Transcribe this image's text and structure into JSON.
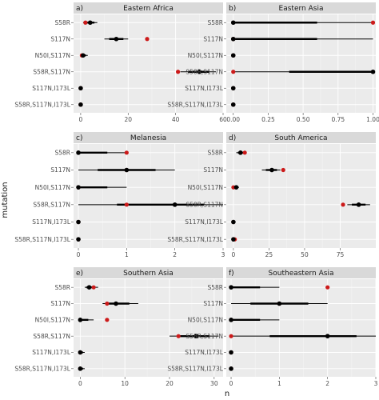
{
  "chart_data": {
    "type": "scatter",
    "xlabel": "n",
    "ylabel": "mutation",
    "mutations": [
      "S58R",
      "S117N",
      "N50I,S117N",
      "S58R,S117N",
      "S117N,I173L",
      "S58R,S117N,I173L"
    ],
    "legend": null,
    "colors": {
      "estimate": "#000000",
      "observed": "#cc1a1a",
      "panel_bg": "#ebebeb",
      "strip": "#d9d9d9"
    },
    "panels": [
      {
        "letter": "a)",
        "title": "Eastern Africa",
        "xlim": [
          -3,
          60
        ],
        "xticks": [
          0,
          20,
          40,
          60
        ],
        "points": [
          {
            "mutation": "S58R",
            "estimate": 4,
            "lower": 1,
            "upper": 7,
            "observed": 2
          },
          {
            "mutation": "S117N",
            "estimate": 15,
            "lower": 10,
            "upper": 20,
            "observed": 28
          },
          {
            "mutation": "N50I,S117N",
            "estimate": 1,
            "lower": 0,
            "upper": 3,
            "observed": 0.5
          },
          {
            "mutation": "S58R,S117N",
            "estimate": 50,
            "lower": 42,
            "upper": 57,
            "observed": 41
          },
          {
            "mutation": "S117N,I173L",
            "estimate": 0,
            "lower": 0,
            "upper": 0,
            "observed": 0
          },
          {
            "mutation": "S58R,S117N,I173L",
            "estimate": 0,
            "lower": 0,
            "upper": 0.5,
            "observed": 0
          }
        ]
      },
      {
        "letter": "b)",
        "title": "Eastern Asia",
        "xlim": [
          -0.05,
          1.02
        ],
        "xticks": [
          0.0,
          0.25,
          0.5,
          0.75,
          1.0
        ],
        "tick_labels": [
          "0.00",
          "0.25",
          "0.50",
          "0.75",
          "1.00"
        ],
        "points": [
          {
            "mutation": "S58R",
            "estimate": 0,
            "lower": 0,
            "upper": 1,
            "observed": 1
          },
          {
            "mutation": "S117N",
            "estimate": 0,
            "lower": 0,
            "upper": 1,
            "observed": 0
          },
          {
            "mutation": "N50I,S117N",
            "estimate": 0,
            "lower": 0,
            "upper": 0,
            "observed": 0
          },
          {
            "mutation": "S58R,S117N",
            "estimate": 1,
            "lower": 0,
            "upper": 1,
            "observed": 0
          },
          {
            "mutation": "S117N,I173L",
            "estimate": 0,
            "lower": 0,
            "upper": 0,
            "observed": 0
          },
          {
            "mutation": "S58R,S117N,I173L",
            "estimate": 0,
            "lower": 0,
            "upper": 0,
            "observed": 0
          }
        ]
      },
      {
        "letter": "c)",
        "title": "Melanesia",
        "xlim": [
          -0.1,
          3.0
        ],
        "xticks": [
          0,
          1,
          2,
          3
        ],
        "points": [
          {
            "mutation": "S58R",
            "estimate": 0,
            "lower": 0,
            "upper": 1,
            "observed": 1
          },
          {
            "mutation": "S117N",
            "estimate": 1,
            "lower": 0,
            "upper": 2,
            "observed": 1
          },
          {
            "mutation": "N50I,S117N",
            "estimate": 0,
            "lower": 0,
            "upper": 1,
            "observed": 0
          },
          {
            "mutation": "S58R,S117N",
            "estimate": 2,
            "lower": 0,
            "upper": 3,
            "observed": 1
          },
          {
            "mutation": "S117N,I173L",
            "estimate": 0,
            "lower": 0,
            "upper": 0,
            "observed": 0
          },
          {
            "mutation": "S58R,S117N,I173L",
            "estimate": 0,
            "lower": 0,
            "upper": 0,
            "observed": 0
          }
        ]
      },
      {
        "letter": "d)",
        "title": "South America",
        "xlim": [
          -5,
          100
        ],
        "xticks": [
          0,
          25,
          50,
          75
        ],
        "points": [
          {
            "mutation": "S58R",
            "estimate": 5,
            "lower": 2,
            "upper": 9,
            "observed": 8
          },
          {
            "mutation": "S117N",
            "estimate": 27,
            "lower": 20,
            "upper": 33,
            "observed": 35
          },
          {
            "mutation": "N50I,S117N",
            "estimate": 2,
            "lower": 0,
            "upper": 4,
            "observed": 0
          },
          {
            "mutation": "S58R,S117N",
            "estimate": 88,
            "lower": 80,
            "upper": 96,
            "observed": 77
          },
          {
            "mutation": "S117N,I173L",
            "estimate": 0,
            "lower": 0,
            "upper": 1,
            "observed": 0
          },
          {
            "mutation": "S58R,S117N,I173L",
            "estimate": 0,
            "lower": 0,
            "upper": 1,
            "observed": 1
          }
        ]
      },
      {
        "letter": "e)",
        "title": "Southern Asia",
        "xlim": [
          -1.5,
          32
        ],
        "xticks": [
          0,
          10,
          20,
          30
        ],
        "points": [
          {
            "mutation": "S58R",
            "estimate": 2,
            "lower": 1,
            "upper": 4,
            "observed": 3
          },
          {
            "mutation": "S117N",
            "estimate": 8,
            "lower": 5,
            "upper": 13,
            "observed": 6
          },
          {
            "mutation": "N50I,S117N",
            "estimate": 0,
            "lower": 0,
            "upper": 3,
            "observed": 6
          },
          {
            "mutation": "S58R,S117N",
            "estimate": 26,
            "lower": 20,
            "upper": 31,
            "observed": 22
          },
          {
            "mutation": "S117N,I173L",
            "estimate": 0,
            "lower": 0,
            "upper": 1,
            "observed": 0
          },
          {
            "mutation": "S58R,S117N,I173L",
            "estimate": 0,
            "lower": 0,
            "upper": 1,
            "observed": 0
          }
        ]
      },
      {
        "letter": "f)",
        "title": "Southeastern Asia",
        "xlim": [
          -0.1,
          3.0
        ],
        "xticks": [
          0,
          1,
          2,
          3
        ],
        "points": [
          {
            "mutation": "S58R",
            "estimate": 0,
            "lower": 0,
            "upper": 1,
            "observed": 2
          },
          {
            "mutation": "S117N",
            "estimate": 1,
            "lower": 0,
            "upper": 2,
            "observed": 1
          },
          {
            "mutation": "N50I,S117N",
            "estimate": 0,
            "lower": 0,
            "upper": 1,
            "observed": 0
          },
          {
            "mutation": "S58R,S117N",
            "estimate": 2,
            "lower": 0,
            "upper": 3,
            "observed": 0
          },
          {
            "mutation": "S117N,I173L",
            "estimate": 0,
            "lower": 0,
            "upper": 0,
            "observed": 0
          },
          {
            "mutation": "S58R,S117N,I173L",
            "estimate": 0,
            "lower": 0,
            "upper": 0,
            "observed": 0
          }
        ]
      }
    ]
  }
}
